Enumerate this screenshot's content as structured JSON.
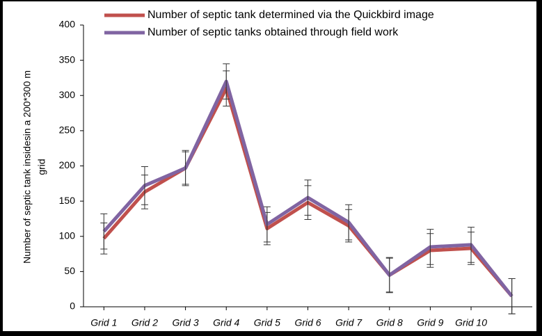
{
  "chart_data": {
    "type": "line",
    "ylabel": [
      "Number of septic tank insidesin a 200*300 m",
      "grid"
    ],
    "categories": [
      "Grid 1",
      "Grid 2",
      "Grid 3",
      "Grid 4",
      "Grid 5",
      "Grid 6",
      "Grid 7",
      "Grid 8",
      "Grid 9",
      "Grid 10",
      null
    ],
    "series": [
      {
        "name": "Number of septic tank determined via the Quickbird image",
        "color": "#c0504d",
        "values": [
          97,
          163,
          197,
          310,
          111,
          148,
          115,
          45,
          80,
          83,
          15
        ],
        "errors": [
          22,
          24,
          23,
          25,
          23,
          24,
          23,
          24,
          24,
          23,
          25
        ]
      },
      {
        "name": "Number of septic tanks obtained through field work",
        "color": "#8064a2",
        "values": [
          107,
          172,
          197,
          320,
          117,
          155,
          120,
          45,
          85,
          88,
          15
        ],
        "errors": [
          25,
          27,
          25,
          25,
          25,
          25,
          25,
          25,
          25,
          25,
          25
        ]
      }
    ],
    "ylim": [
      0,
      400
    ],
    "yticks": [
      0,
      50,
      100,
      150,
      200,
      250,
      300,
      350,
      400
    ],
    "grid": false,
    "legend": "top"
  }
}
